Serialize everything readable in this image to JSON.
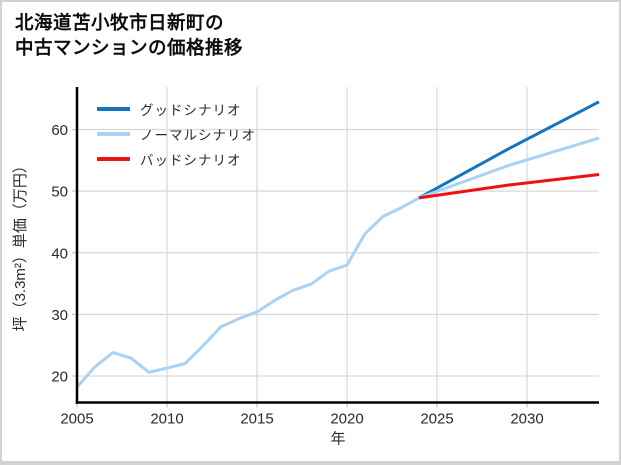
{
  "card": {
    "title_line1": "北海道苫小牧市日新町の",
    "title_line2": "中古マンションの価格推移"
  },
  "chart_data": {
    "type": "line",
    "title": "北海道苫小牧市日新町の中古マンションの価格推移",
    "xlabel": "年",
    "ylabel": "坪（3.3m²）単価（万円）",
    "xlim": [
      2005,
      2034
    ],
    "ylim": [
      15.7,
      66.9
    ],
    "xticks": [
      2005,
      2010,
      2015,
      2020,
      2025,
      2030
    ],
    "yticks": [
      20,
      30,
      40,
      50,
      60
    ],
    "grid": true,
    "legend_position": "upper-left",
    "series": [
      {
        "id": "history",
        "label": "",
        "color": "#a9d2f4",
        "show_in_legend": false,
        "x": [
          2005,
          2006,
          2007,
          2008,
          2009,
          2010,
          2011,
          2012,
          2013,
          2014,
          2015,
          2016,
          2017,
          2018,
          2019,
          2020,
          2021,
          2022,
          2023,
          2024
        ],
        "y": [
          18.2,
          21.5,
          23.8,
          22.9,
          20.6,
          21.3,
          22.0,
          24.9,
          28.0,
          29.3,
          30.4,
          32.3,
          33.9,
          34.9,
          37.0,
          38.0,
          43.1,
          45.9,
          47.3,
          48.9
        ]
      },
      {
        "id": "good",
        "label": "グッドシナリオ",
        "color": "#1375c0",
        "show_in_legend": true,
        "x": [
          2024,
          2029,
          2034
        ],
        "y": [
          48.9,
          56.9,
          64.5
        ]
      },
      {
        "id": "normal",
        "label": "ノーマルシナリオ",
        "color": "#a9d2f4",
        "show_in_legend": true,
        "x": [
          2024,
          2029,
          2034
        ],
        "y": [
          48.9,
          54.2,
          58.6
        ]
      },
      {
        "id": "bad",
        "label": "バッドシナリオ",
        "color": "#ee1111",
        "show_in_legend": true,
        "x": [
          2024,
          2029,
          2034
        ],
        "y": [
          48.9,
          51.0,
          52.7
        ]
      }
    ]
  }
}
